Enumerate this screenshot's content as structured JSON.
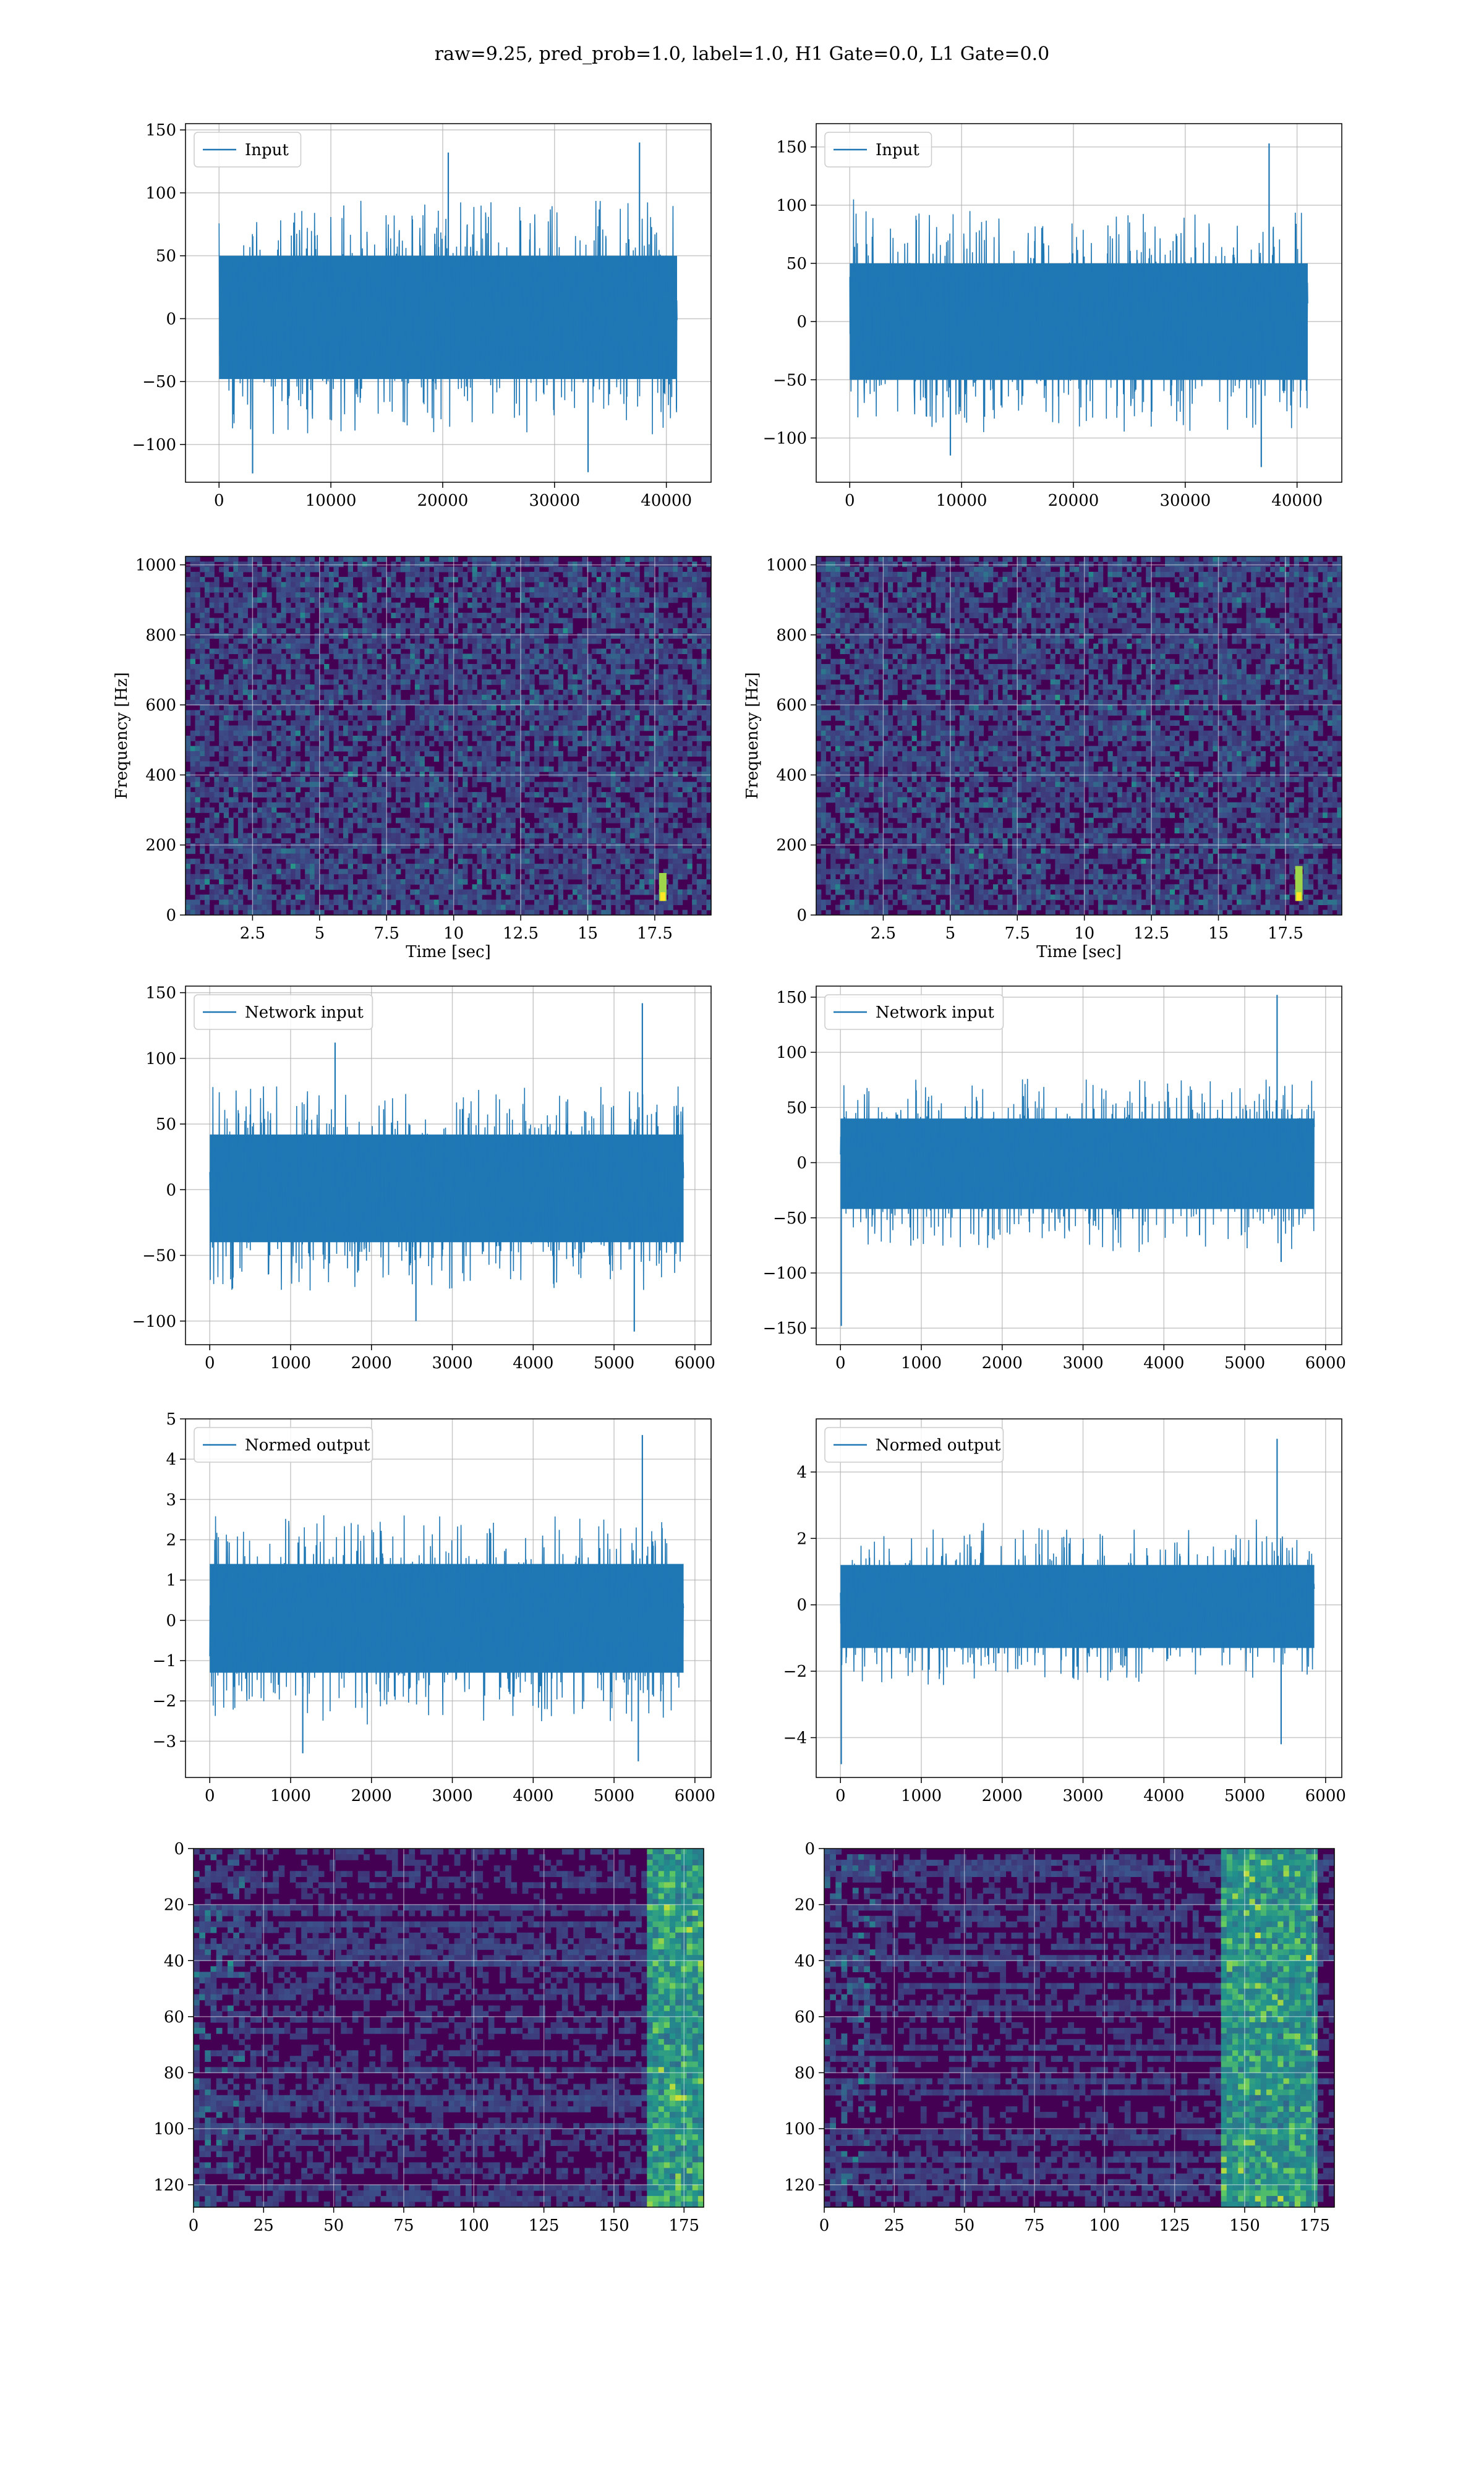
{
  "suptitle": "raw=9.25, pred_prob=1.0, label=1.0, H1 Gate=0.0, L1 Gate=0.0",
  "colors": {
    "series": "#1f77b4",
    "heat_low": "#440154",
    "heat_high": "#fde725",
    "grid": "#b0b0b0"
  },
  "chart_data": [
    {
      "id": "input-h1",
      "type": "line",
      "legend": "Input",
      "legend_loc": "upper-left",
      "xlim": [
        -3000,
        44000
      ],
      "ylim": [
        -130,
        155
      ],
      "xticks": [
        0,
        10000,
        20000,
        30000,
        40000
      ],
      "yticks": [
        -100,
        -50,
        0,
        50,
        100,
        150
      ],
      "x_extent": [
        0,
        40960
      ],
      "band": [
        -48,
        50
      ],
      "envelope_peaks": [
        {
          "x": 20500,
          "y": 132
        },
        {
          "x": 37600,
          "y": 140
        },
        {
          "x": 3000,
          "y": -123
        },
        {
          "x": 33000,
          "y": -122
        }
      ],
      "grid": true
    },
    {
      "id": "input-l1",
      "type": "line",
      "legend": "Input",
      "legend_loc": "upper-left",
      "xlim": [
        -3000,
        44000
      ],
      "ylim": [
        -138,
        170
      ],
      "xticks": [
        0,
        10000,
        20000,
        30000,
        40000
      ],
      "yticks": [
        -100,
        -50,
        0,
        50,
        100,
        150
      ],
      "x_extent": [
        0,
        40960
      ],
      "band": [
        -50,
        50
      ],
      "envelope_peaks": [
        {
          "x": 37500,
          "y": 153
        },
        {
          "x": 9000,
          "y": -115
        },
        {
          "x": 36800,
          "y": -125
        }
      ],
      "grid": true
    },
    {
      "id": "spec-h1",
      "type": "heatmap",
      "xlabel": "Time [sec]",
      "ylabel": "Frequency [Hz]",
      "xlim": [
        0,
        19.6
      ],
      "ylim": [
        0,
        1024
      ],
      "xticks": [
        2.5,
        5.0,
        7.5,
        10.0,
        12.5,
        15.0,
        17.5
      ],
      "yticks": [
        0,
        200,
        400,
        600,
        800,
        1000
      ],
      "chirp": {
        "t": 17.8,
        "f_range": [
          40,
          120
        ]
      },
      "grid": true
    },
    {
      "id": "spec-l1",
      "type": "heatmap",
      "xlabel": "Time [sec]",
      "ylabel": "Frequency [Hz]",
      "xlim": [
        0,
        19.6
      ],
      "ylim": [
        0,
        1024
      ],
      "xticks": [
        2.5,
        5.0,
        7.5,
        10.0,
        12.5,
        15.0,
        17.5
      ],
      "yticks": [
        0,
        200,
        400,
        600,
        800,
        1000
      ],
      "chirp": {
        "t": 18.0,
        "f_range": [
          40,
          140
        ]
      },
      "grid": true
    },
    {
      "id": "netin-h1",
      "type": "line",
      "legend": "Network input",
      "legend_loc": "upper-left",
      "xlim": [
        -300,
        6200
      ],
      "ylim": [
        -118,
        155
      ],
      "xticks": [
        0,
        1000,
        2000,
        3000,
        4000,
        5000,
        6000
      ],
      "yticks": [
        -100,
        -50,
        0,
        50,
        100,
        150
      ],
      "x_extent": [
        0,
        5860
      ],
      "band": [
        -40,
        42
      ],
      "envelope_peaks": [
        {
          "x": 5350,
          "y": 142
        },
        {
          "x": 1550,
          "y": 112
        },
        {
          "x": 5250,
          "y": -108
        },
        {
          "x": 2550,
          "y": -100
        }
      ],
      "grid": true
    },
    {
      "id": "netin-l1",
      "type": "line",
      "legend": "Network input",
      "legend_loc": "upper-left",
      "xlim": [
        -300,
        6200
      ],
      "ylim": [
        -165,
        160
      ],
      "xticks": [
        0,
        1000,
        2000,
        3000,
        4000,
        5000,
        6000
      ],
      "yticks": [
        -150,
        -100,
        -50,
        0,
        50,
        100,
        150
      ],
      "x_extent": [
        0,
        5860
      ],
      "band": [
        -42,
        40
      ],
      "envelope_peaks": [
        {
          "x": 5400,
          "y": 152
        },
        {
          "x": 10,
          "y": -148
        },
        {
          "x": 5450,
          "y": -90
        }
      ],
      "grid": true
    },
    {
      "id": "normed-h1",
      "type": "line",
      "legend": "Normed output",
      "legend_loc": "upper-left",
      "xlim": [
        -300,
        6200
      ],
      "ylim": [
        -3.9,
        5.0
      ],
      "xticks": [
        0,
        1000,
        2000,
        3000,
        4000,
        5000,
        6000
      ],
      "yticks": [
        -3,
        -2,
        -1,
        0,
        1,
        2,
        3,
        4,
        5
      ],
      "x_extent": [
        0,
        5860
      ],
      "band": [
        -1.3,
        1.4
      ],
      "envelope_peaks": [
        {
          "x": 5350,
          "y": 4.6
        },
        {
          "x": 1150,
          "y": -3.3
        },
        {
          "x": 5300,
          "y": -3.5
        }
      ],
      "grid": true
    },
    {
      "id": "normed-l1",
      "type": "line",
      "legend": "Normed output",
      "legend_loc": "upper-left",
      "xlim": [
        -300,
        6200
      ],
      "ylim": [
        -5.2,
        5.6
      ],
      "xticks": [
        0,
        1000,
        2000,
        3000,
        4000,
        5000,
        6000
      ],
      "yticks": [
        -4,
        -2,
        0,
        2,
        4
      ],
      "x_extent": [
        0,
        5860
      ],
      "band": [
        -1.3,
        1.2
      ],
      "envelope_peaks": [
        {
          "x": 5400,
          "y": 5.0
        },
        {
          "x": 10,
          "y": -4.8
        },
        {
          "x": 5450,
          "y": -4.2
        }
      ],
      "grid": true
    },
    {
      "id": "feat-h1",
      "type": "heatmap",
      "xlim": [
        0,
        182
      ],
      "ylim": [
        128,
        0
      ],
      "xticks": [
        0,
        25,
        50,
        75,
        100,
        125,
        150,
        175
      ],
      "yticks": [
        0,
        20,
        40,
        60,
        80,
        100,
        120
      ],
      "bright_columns": [
        160,
        182
      ],
      "grid": true
    },
    {
      "id": "feat-l1",
      "type": "heatmap",
      "xlim": [
        0,
        182
      ],
      "ylim": [
        128,
        0
      ],
      "xticks": [
        0,
        25,
        50,
        75,
        100,
        125,
        150,
        175
      ],
      "yticks": [
        0,
        20,
        40,
        60,
        80,
        100,
        120
      ],
      "bright_columns": [
        140,
        175
      ],
      "grid": true
    }
  ]
}
